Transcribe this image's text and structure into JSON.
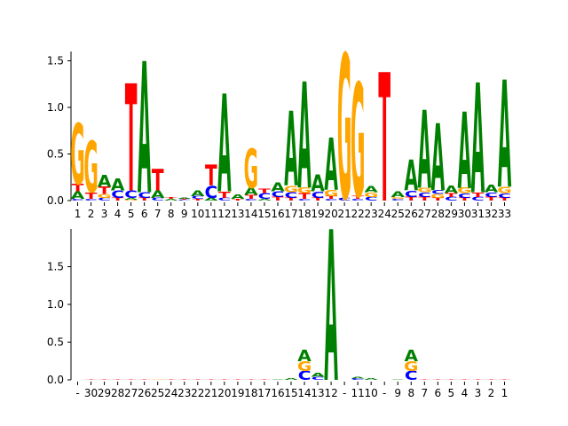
{
  "chart_data": [
    {
      "type": "sequence-logo",
      "xlabel": "",
      "ylabel": "",
      "ylim": [
        0,
        1.6
      ],
      "yticks": [
        "0.0",
        "0.5",
        "1.0",
        "1.5"
      ],
      "ytick_values": [
        0.0,
        0.5,
        1.0,
        1.5
      ],
      "positions": [
        "1",
        "2",
        "3",
        "4",
        "5",
        "6",
        "7",
        "8",
        "9",
        "10",
        "11",
        "12",
        "13",
        "14",
        "15",
        "16",
        "17",
        "18",
        "19",
        "20",
        "21",
        "22",
        "23",
        "24",
        "25",
        "26",
        "27",
        "28",
        "29",
        "30",
        "31",
        "32",
        "33"
      ],
      "stacks": [
        [
          [
            "C",
            0.02
          ],
          [
            "A",
            0.08
          ],
          [
            "T",
            0.08
          ],
          [
            "G",
            0.65
          ]
        ],
        [
          [
            "C",
            0.02
          ],
          [
            "T",
            0.07
          ],
          [
            "G",
            0.55
          ]
        ],
        [
          [
            "C",
            0.03
          ],
          [
            "G",
            0.04
          ],
          [
            "T",
            0.08
          ],
          [
            "A",
            0.13
          ]
        ],
        [
          [
            "T",
            0.03
          ],
          [
            "C",
            0.08
          ],
          [
            "A",
            0.13
          ]
        ],
        [
          [
            "G",
            0.01
          ],
          [
            "A",
            0.02
          ],
          [
            "C",
            0.08
          ],
          [
            "T",
            1.15
          ]
        ],
        [
          [
            "T",
            0.03
          ],
          [
            "C",
            0.06
          ],
          [
            "A",
            1.41
          ]
        ],
        [
          [
            "C",
            0.03
          ],
          [
            "A",
            0.08
          ],
          [
            "T",
            0.23
          ]
        ],
        [
          [
            "A",
            0.02
          ],
          [
            "T",
            0.02
          ]
        ],
        [
          [
            "C",
            0.01
          ],
          [
            "T",
            0.01
          ],
          [
            "A",
            0.01
          ]
        ],
        [
          [
            "T",
            0.02
          ],
          [
            "C",
            0.03
          ],
          [
            "A",
            0.06
          ]
        ],
        [
          [
            "A",
            0.03
          ],
          [
            "C",
            0.13
          ],
          [
            "T",
            0.22
          ]
        ],
        [
          [
            "C",
            0.03
          ],
          [
            "T",
            0.07
          ],
          [
            "A",
            1.05
          ]
        ],
        [
          [
            "T",
            0.02
          ],
          [
            "A",
            0.05
          ]
        ],
        [
          [
            "C",
            0.02
          ],
          [
            "T",
            0.04
          ],
          [
            "A",
            0.08
          ],
          [
            "G",
            0.42
          ]
        ],
        [
          [
            "A",
            0.02
          ],
          [
            "C",
            0.06
          ],
          [
            "T",
            0.05
          ]
        ],
        [
          [
            "T",
            0.04
          ],
          [
            "C",
            0.06
          ],
          [
            "A",
            0.09
          ]
        ],
        [
          [
            "T",
            0.03
          ],
          [
            "C",
            0.06
          ],
          [
            "G",
            0.07
          ],
          [
            "A",
            0.8
          ]
        ],
        [
          [
            "C",
            0.02
          ],
          [
            "T",
            0.06
          ],
          [
            "G",
            0.06
          ],
          [
            "A",
            1.14
          ]
        ],
        [
          [
            "T",
            0.03
          ],
          [
            "C",
            0.07
          ],
          [
            "A",
            0.18
          ]
        ],
        [
          [
            "C",
            0.02
          ],
          [
            "T",
            0.03
          ],
          [
            "G",
            0.07
          ],
          [
            "A",
            0.56
          ]
        ],
        [
          [
            "C",
            0.03
          ],
          [
            "G",
            1.55
          ]
        ],
        [
          [
            "C",
            0.02
          ],
          [
            "T",
            0.03
          ],
          [
            "G",
            1.22
          ]
        ],
        [
          [
            "C",
            0.04
          ],
          [
            "G",
            0.05
          ],
          [
            "A",
            0.07
          ]
        ],
        [
          [
            "T",
            1.38
          ]
        ],
        [
          [
            "C",
            0.02
          ],
          [
            "G",
            0.02
          ],
          [
            "A",
            0.06
          ]
        ],
        [
          [
            "T",
            0.04
          ],
          [
            "C",
            0.07
          ],
          [
            "A",
            0.33
          ]
        ],
        [
          [
            "T",
            0.04
          ],
          [
            "C",
            0.05
          ],
          [
            "G",
            0.05
          ],
          [
            "A",
            0.84
          ]
        ],
        [
          [
            "T",
            0.03
          ],
          [
            "G",
            0.04
          ],
          [
            "C",
            0.04
          ],
          [
            "A",
            0.72
          ]
        ],
        [
          [
            "C",
            0.04
          ],
          [
            "T",
            0.04
          ],
          [
            "A",
            0.08
          ]
        ],
        [
          [
            "T",
            0.03
          ],
          [
            "C",
            0.05
          ],
          [
            "G",
            0.06
          ],
          [
            "A",
            0.82
          ]
        ],
        [
          [
            "C",
            0.04
          ],
          [
            "T",
            0.05
          ],
          [
            "A",
            1.18
          ]
        ],
        [
          [
            "T",
            0.04
          ],
          [
            "C",
            0.05
          ],
          [
            "A",
            0.08
          ]
        ],
        [
          [
            "T",
            0.03
          ],
          [
            "C",
            0.05
          ],
          [
            "G",
            0.07
          ],
          [
            "A",
            1.15
          ]
        ]
      ]
    },
    {
      "type": "sequence-logo",
      "xlabel": "",
      "ylabel": "",
      "ylim": [
        0,
        2.0
      ],
      "yticks": [
        "0.0",
        "0.5",
        "1.0",
        "1.5"
      ],
      "ytick_values": [
        0.0,
        0.5,
        1.0,
        1.5
      ],
      "positions": [
        "-",
        "30",
        "29",
        "28",
        "27",
        "26",
        "25",
        "24",
        "23",
        "22",
        "21",
        "20",
        "19",
        "18",
        "17",
        "16",
        "15",
        "14",
        "13",
        "12",
        "-",
        "11",
        "10",
        "-",
        "9",
        "8",
        "7",
        "6",
        "5",
        "4",
        "3",
        "2",
        "1"
      ],
      "stacks": [
        [],
        [
          [
            "T",
            0.01
          ]
        ],
        [
          [
            "T",
            0.01
          ]
        ],
        [
          [
            "T",
            0.01
          ]
        ],
        [
          [
            "T",
            0.01
          ]
        ],
        [
          [
            "T",
            0.01
          ]
        ],
        [
          [
            "G",
            0.01
          ]
        ],
        [
          [
            "T",
            0.01
          ]
        ],
        [
          [
            "T",
            0.01
          ]
        ],
        [
          [
            "T",
            0.01
          ]
        ],
        [
          [
            "T",
            0.01
          ]
        ],
        [
          [
            "T",
            0.01
          ]
        ],
        [
          [
            "T",
            0.01
          ]
        ],
        [
          [
            "T",
            0.01
          ]
        ],
        [
          [
            "T",
            0.01
          ]
        ],
        [
          [
            "A",
            0.01
          ]
        ],
        [
          [
            "A",
            0.02
          ]
        ],
        [
          [
            "C",
            0.12
          ],
          [
            "G",
            0.13
          ],
          [
            "A",
            0.15
          ]
        ],
        [
          [
            "C",
            0.04
          ],
          [
            "A",
            0.05
          ]
        ],
        [
          [
            "A",
            2.0
          ]
        ],
        [],
        [
          [
            "C",
            0.02
          ],
          [
            "A",
            0.02
          ]
        ],
        [
          [
            "A",
            0.02
          ]
        ],
        [],
        [
          [
            "A",
            0.01
          ]
        ],
        [
          [
            "C",
            0.12
          ],
          [
            "G",
            0.13
          ],
          [
            "A",
            0.15
          ]
        ],
        [
          [
            "T",
            0.01
          ]
        ],
        [
          [
            "T",
            0.01
          ]
        ],
        [
          [
            "T",
            0.01
          ]
        ],
        [
          [
            "T",
            0.01
          ]
        ],
        [
          [
            "T",
            0.01
          ]
        ],
        [
          [
            "T",
            0.01
          ]
        ],
        [
          [
            "T",
            0.01
          ]
        ]
      ]
    }
  ],
  "colors": {
    "A": "#008000",
    "C": "#0000ff",
    "G": "#ffa500",
    "T": "#ff0000"
  }
}
